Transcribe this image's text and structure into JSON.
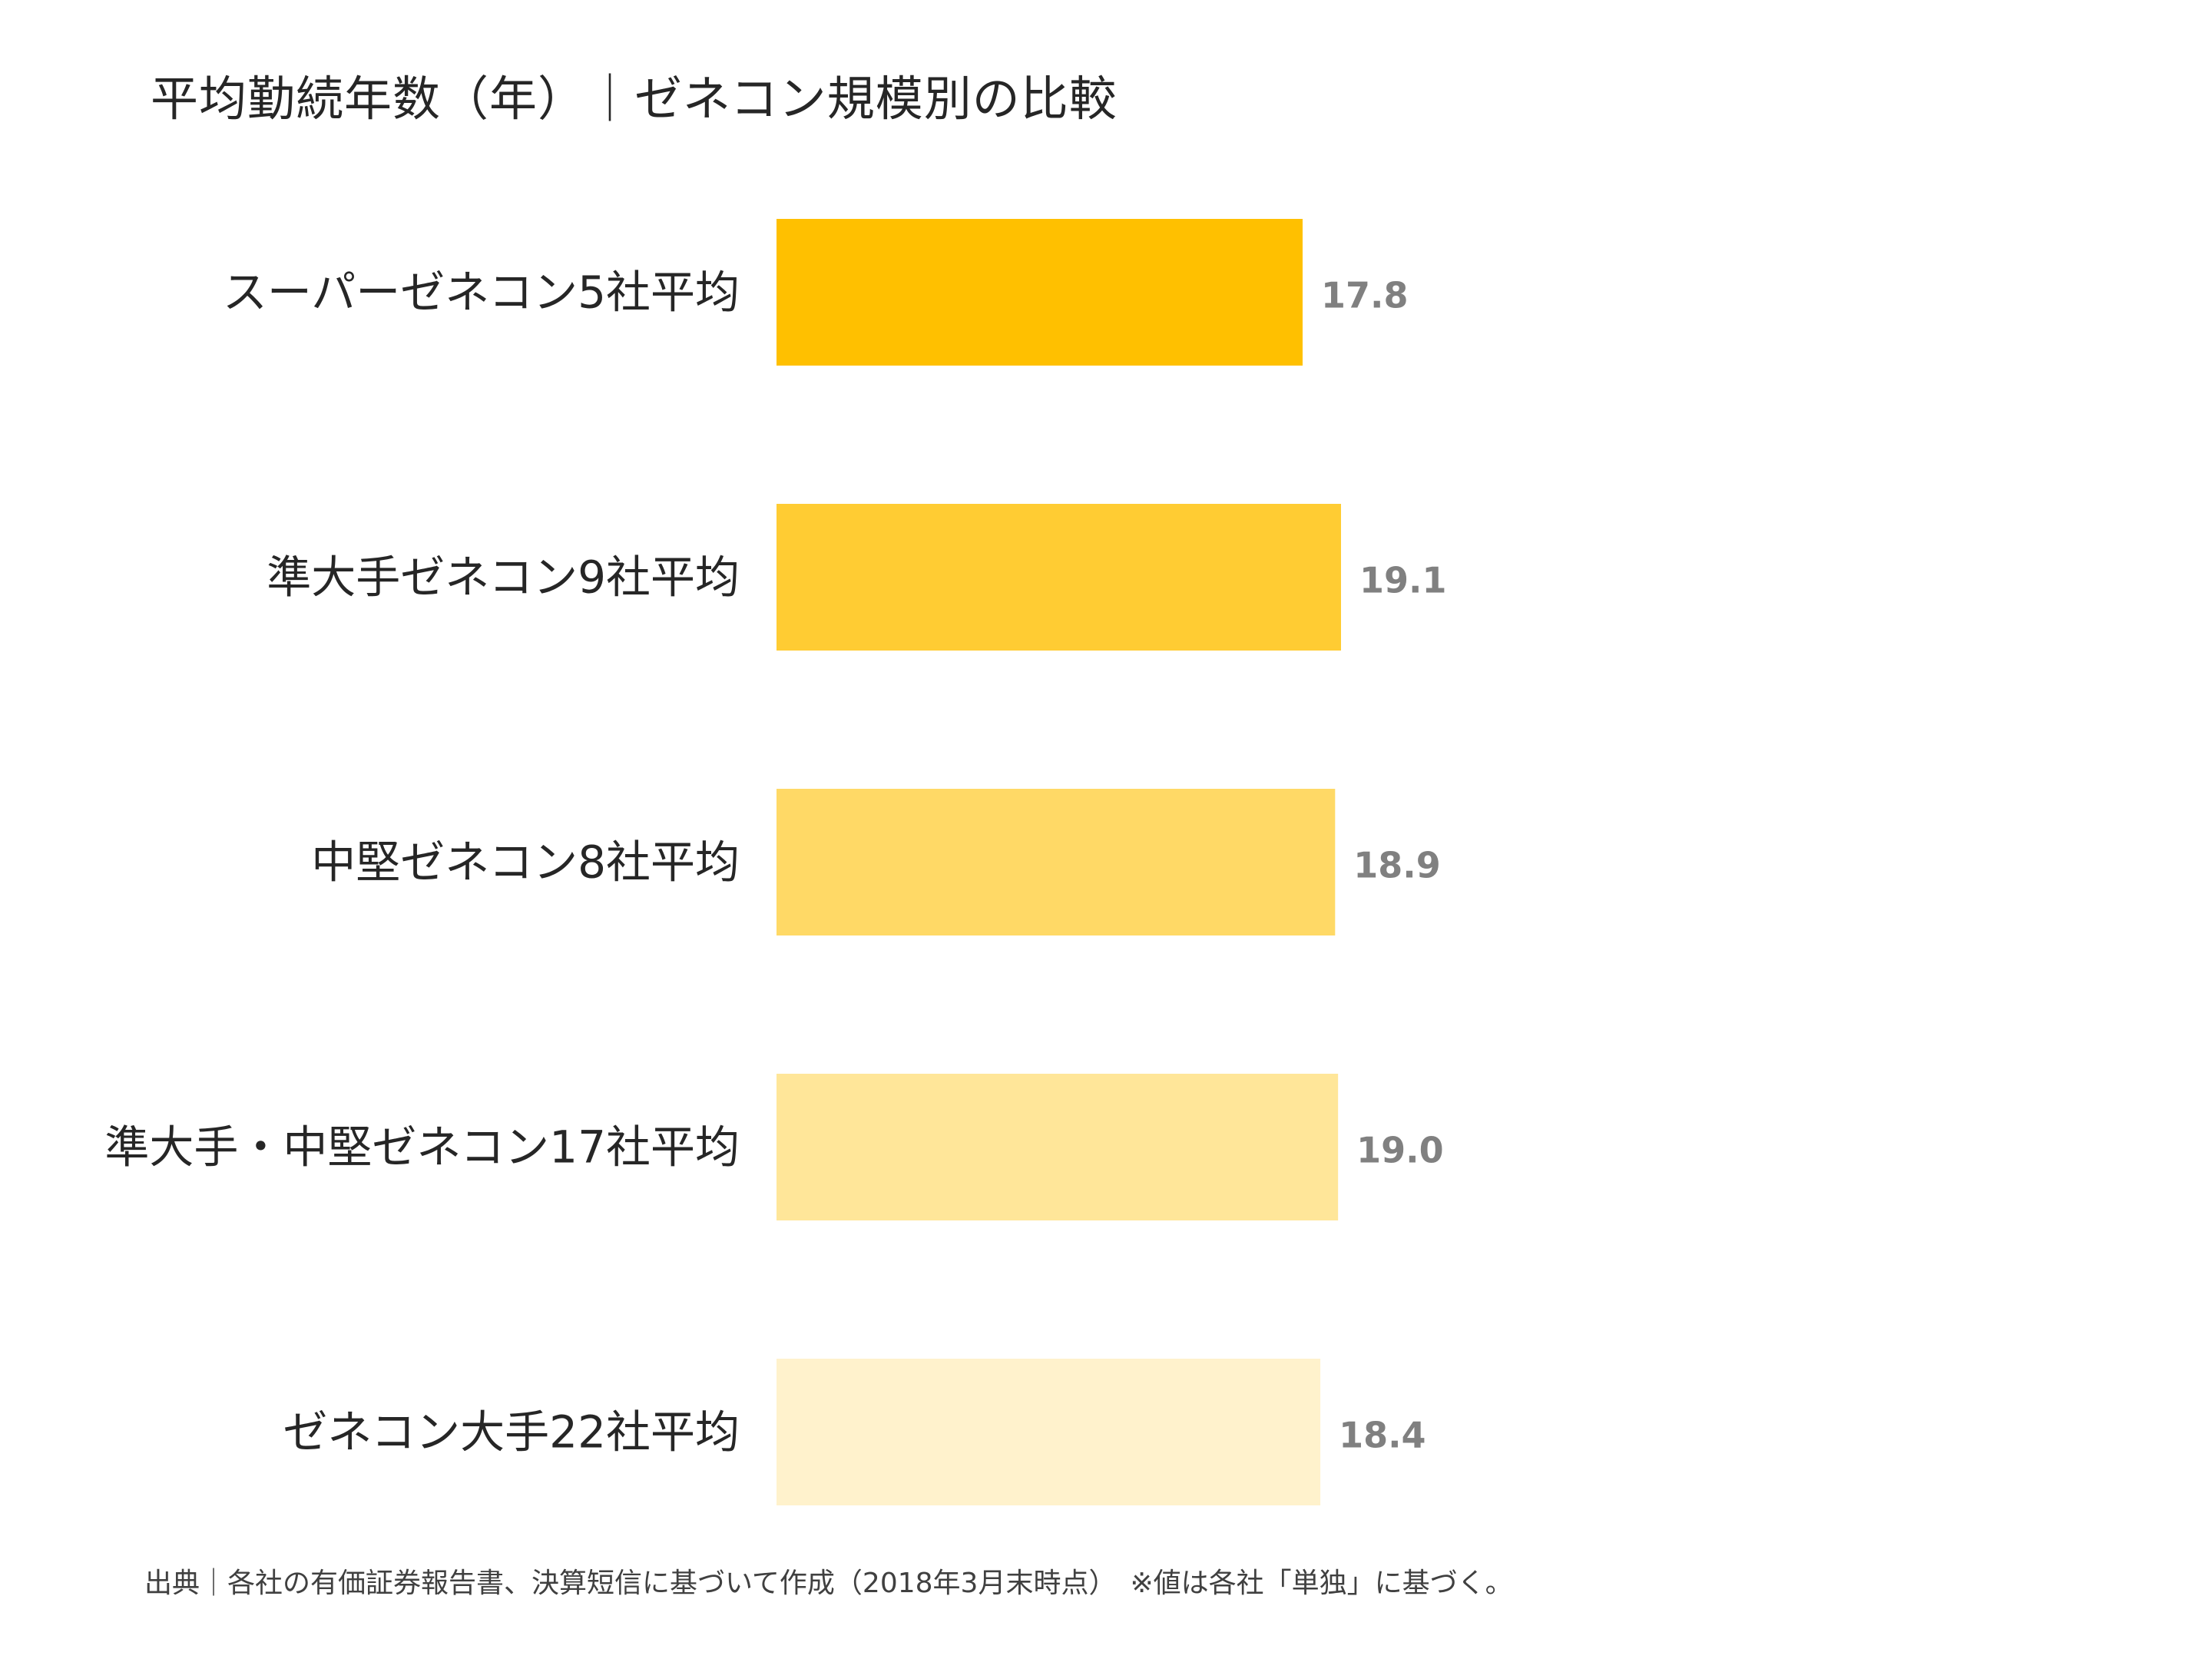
{
  "chart_data": {
    "type": "bar",
    "orientation": "horizontal",
    "title": "平均勤続年数（年）｜ゼネコン規模別の比較",
    "categories": [
      "スーパーゼネコン5社平均",
      "準大手ゼネコン9社平均",
      "中堅ゼネコン8社平均",
      "準大手・中堅ゼネコン17社平均",
      "ゼネコン大手22社平均"
    ],
    "values": [
      17.8,
      19.1,
      18.9,
      19.0,
      18.4
    ],
    "value_labels": [
      "17.8",
      "19.1",
      "18.9",
      "19.0",
      "18.4"
    ],
    "colors": [
      "#FFC000",
      "#FFCC33",
      "#FFD966",
      "#FFE699",
      "#FFF2CC"
    ],
    "xlim": [
      0,
      19.1
    ],
    "grid": false,
    "legend": "none",
    "source_note": "出典｜各社の有価証券報告書、決算短信に基づいて作成（2018年3月末時点）　※値は各社「単独」に基づく。"
  }
}
